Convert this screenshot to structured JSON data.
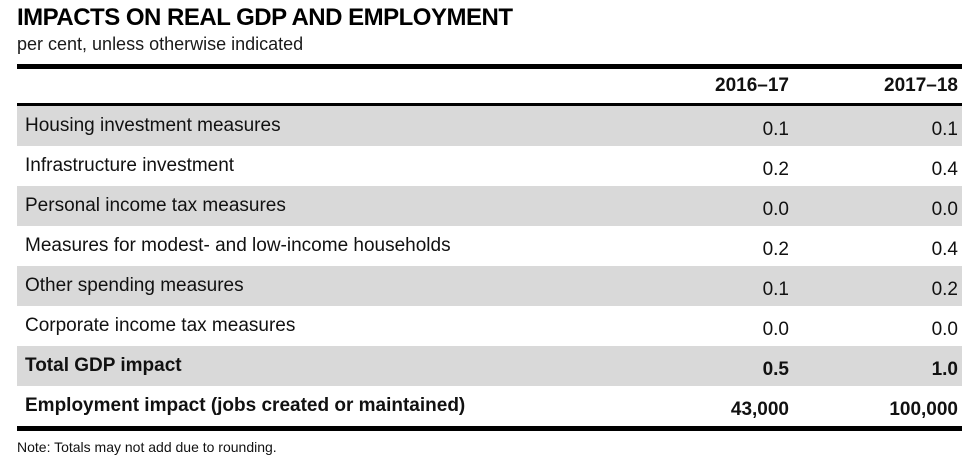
{
  "colors": {
    "row_shade": "#d9d9d9",
    "rule": "#000000",
    "text_primary": "#111111"
  },
  "chart_data": {
    "type": "table",
    "title": "IMPACTS ON REAL GDP AND EMPLOYMENT",
    "subtitle": "per cent, unless otherwise indicated",
    "columns": [
      "2016–17",
      "2017–18"
    ],
    "rows": [
      {
        "label": "Housing investment measures",
        "values": [
          "0.1",
          "0.1"
        ],
        "shaded": true,
        "bold": false
      },
      {
        "label": "Infrastructure investment",
        "values": [
          "0.2",
          "0.4"
        ],
        "shaded": false,
        "bold": false
      },
      {
        "label": "Personal income tax measures",
        "values": [
          "0.0",
          "0.0"
        ],
        "shaded": true,
        "bold": false
      },
      {
        "label": "Measures for modest- and low-income households",
        "values": [
          "0.2",
          "0.4"
        ],
        "shaded": false,
        "bold": false
      },
      {
        "label": "Other spending measures",
        "values": [
          "0.1",
          "0.2"
        ],
        "shaded": true,
        "bold": false
      },
      {
        "label": "Corporate income tax measures",
        "values": [
          "0.0",
          "0.0"
        ],
        "shaded": false,
        "bold": false
      },
      {
        "label": "Total GDP impact",
        "values": [
          "0.5",
          "1.0"
        ],
        "shaded": true,
        "bold": true
      },
      {
        "label": "Employment impact (jobs created or maintained)",
        "values": [
          "43,000",
          "100,000"
        ],
        "shaded": false,
        "bold": true
      }
    ],
    "note": "Note: Totals may not add due to rounding.",
    "layout": {
      "grid": "off",
      "value_alignment": "right",
      "shading": "alternating-rows"
    }
  }
}
